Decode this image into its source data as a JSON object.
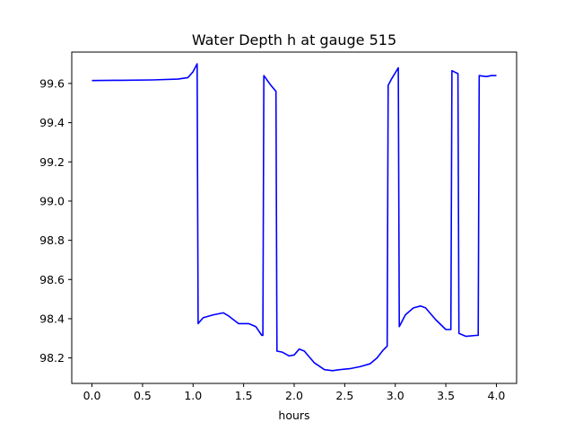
{
  "chart_data": {
    "type": "line",
    "title": "Water Depth h at gauge 515",
    "xlabel": "hours",
    "ylabel": "",
    "xlim": [
      -0.2,
      4.2
    ],
    "ylim": [
      98.07,
      99.76
    ],
    "x_ticks": [
      0.0,
      0.5,
      1.0,
      1.5,
      2.0,
      2.5,
      3.0,
      3.5,
      4.0
    ],
    "x_tick_labels": [
      "0.0",
      "0.5",
      "1.0",
      "1.5",
      "2.0",
      "2.5",
      "3.0",
      "3.5",
      "4.0"
    ],
    "y_ticks": [
      98.2,
      98.4,
      98.6,
      98.8,
      99.0,
      99.2,
      99.4,
      99.6
    ],
    "y_tick_labels": [
      "98.2",
      "98.4",
      "98.6",
      "98.8",
      "99.0",
      "99.2",
      "99.4",
      "99.6"
    ],
    "grid": false,
    "series": [
      {
        "color": "#0000ff",
        "x": [
          0.0,
          0.3,
          0.6,
          0.85,
          0.95,
          1.0,
          1.04,
          1.05,
          1.1,
          1.2,
          1.3,
          1.35,
          1.45,
          1.55,
          1.62,
          1.68,
          1.69,
          1.7,
          1.77,
          1.82,
          1.83,
          1.88,
          1.95,
          2.0,
          2.05,
          2.1,
          2.2,
          2.3,
          2.38,
          2.45,
          2.55,
          2.65,
          2.75,
          2.82,
          2.88,
          2.92,
          2.93,
          2.96,
          3.03,
          3.04,
          3.1,
          3.18,
          3.25,
          3.3,
          3.4,
          3.5,
          3.55,
          3.56,
          3.62,
          3.63,
          3.7,
          3.8,
          3.82,
          3.83,
          3.9,
          3.95,
          4.0
        ],
        "y": [
          99.615,
          99.616,
          99.618,
          99.622,
          99.63,
          99.66,
          99.7,
          98.375,
          98.405,
          98.42,
          98.43,
          98.415,
          98.375,
          98.375,
          98.36,
          98.315,
          98.315,
          99.64,
          99.59,
          99.56,
          98.235,
          98.23,
          98.21,
          98.215,
          98.245,
          98.235,
          98.175,
          98.14,
          98.135,
          98.14,
          98.145,
          98.155,
          98.17,
          98.2,
          98.24,
          98.26,
          99.59,
          99.62,
          99.68,
          98.36,
          98.42,
          98.455,
          98.465,
          98.455,
          98.395,
          98.345,
          98.345,
          99.665,
          99.65,
          98.325,
          98.31,
          98.315,
          98.315,
          99.64,
          99.635,
          99.64,
          99.64
        ]
      }
    ]
  }
}
